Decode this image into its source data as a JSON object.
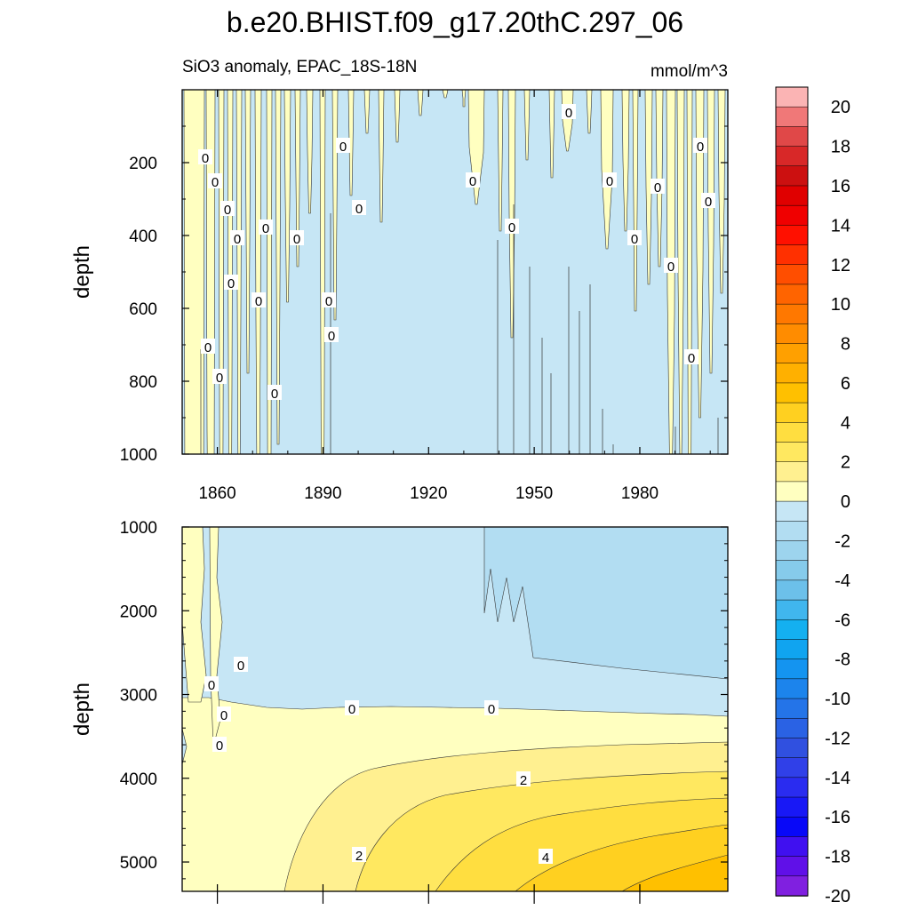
{
  "title": "b.e20.BHIST.f09_g17.20thC.297_06",
  "subtitle_left": "SiO3 anomaly, EPAC_18S-18N",
  "subtitle_right": "mmol/m^3",
  "chart_data": [
    {
      "type": "heatmap",
      "panel": "upper",
      "ylabel": "depth",
      "xlim": [
        1850,
        2005
      ],
      "ylim": [
        1000,
        0
      ],
      "x_tick_labels": [
        "1860",
        "1890",
        "1920",
        "1950",
        "1980"
      ],
      "y_tick_labels": [
        "200",
        "400",
        "600",
        "800",
        "1000"
      ],
      "contour_labels": [
        "0"
      ],
      "description_values": {
        "dominant_range": [
          -1,
          0
        ],
        "positive_streaks_range": [
          0,
          1
        ]
      }
    },
    {
      "type": "heatmap",
      "panel": "lower",
      "ylabel": "depth",
      "xlim": [
        1850,
        2005
      ],
      "ylim": [
        5350,
        1000
      ],
      "y_tick_labels": [
        "1000",
        "2000",
        "3000",
        "4000",
        "5000"
      ],
      "contour_labels": [
        "0",
        "2",
        "4"
      ],
      "zero_contour_depth": 3200,
      "max_anomaly": 5
    }
  ],
  "colorbar": {
    "tick_labels": [
      "20",
      "18",
      "16",
      "14",
      "12",
      "10",
      "8",
      "6",
      "4",
      "2",
      "0",
      "-2",
      "-4",
      "-6",
      "-8",
      "-10",
      "-12",
      "-14",
      "-16",
      "-18",
      "-20"
    ],
    "colors": [
      "#fbb4b4",
      "#f07878",
      "#e04848",
      "#d82828",
      "#cc1010",
      "#e00000",
      "#f00000",
      "#ff1000",
      "#ff3000",
      "#ff4e00",
      "#ff6400",
      "#ff7800",
      "#ff8c00",
      "#ffa000",
      "#ffb000",
      "#ffc000",
      "#ffd020",
      "#ffde40",
      "#ffe860",
      "#fff090",
      "#ffffc0",
      "#c6e6f5",
      "#b2ddf2",
      "#9dd4ee",
      "#86cbeb",
      "#6cc0ea",
      "#40b6ee",
      "#14b0f0",
      "#10a4f0",
      "#1494f0",
      "#1c84ec",
      "#2474e8",
      "#2a62e4",
      "#3050e0",
      "#3040e8",
      "#2a2cf0",
      "#1818f6",
      "#0808f8",
      "#4010f0",
      "#6010e8",
      "#8020e0"
    ]
  }
}
